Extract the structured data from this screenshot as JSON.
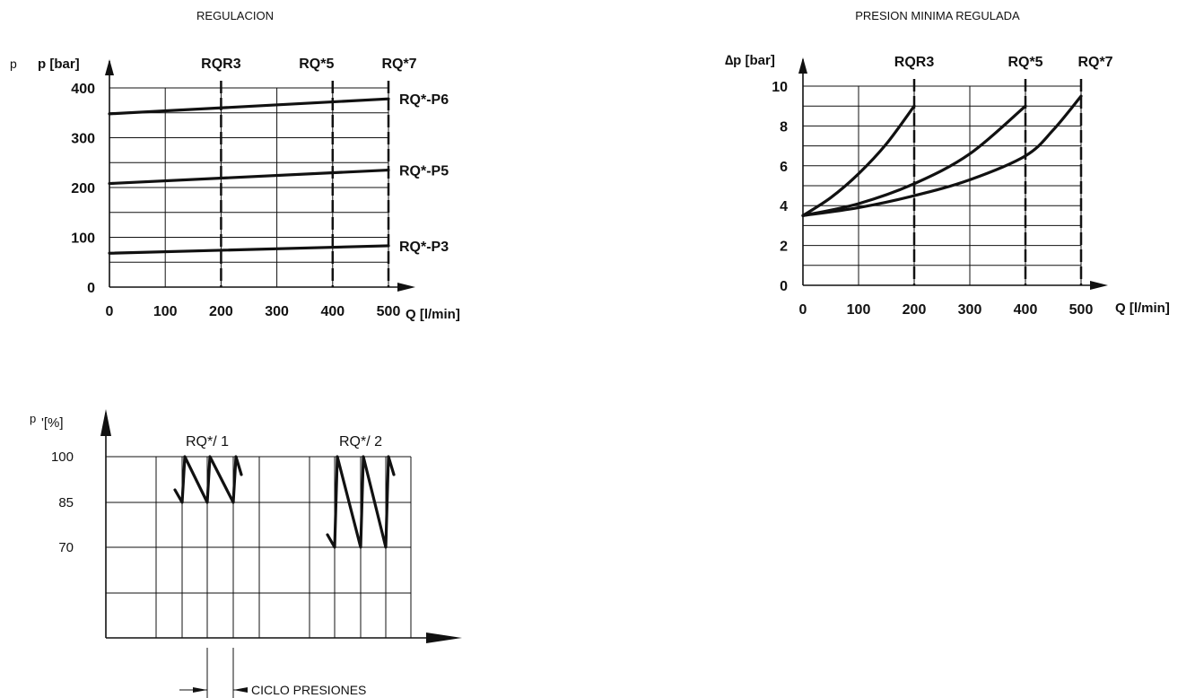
{
  "chart_data": [
    {
      "type": "line",
      "title": "REGULACION",
      "ylabel_prefix": "p",
      "ylabel": "p [bar]",
      "xlabel": "Q [l/min]",
      "xlim": [
        0,
        500
      ],
      "ylim": [
        0,
        400
      ],
      "x_ticks": [
        "0",
        "100",
        "200",
        "300",
        "400",
        "500"
      ],
      "y_ticks": [
        "0",
        "100",
        "200",
        "300",
        "400"
      ],
      "markers": [
        {
          "label": "RQR3",
          "x": 200
        },
        {
          "label": "RQ*5",
          "x": 400
        },
        {
          "label": "RQ*7",
          "x": 500
        }
      ],
      "series": [
        {
          "name": "RQ*-P6",
          "x": [
            0,
            500
          ],
          "y": [
            348,
            378
          ]
        },
        {
          "name": "RQ*-P5",
          "x": [
            0,
            500
          ],
          "y": [
            208,
            235
          ]
        },
        {
          "name": "RQ*-P3",
          "x": [
            0,
            500
          ],
          "y": [
            68,
            83
          ]
        }
      ],
      "grid": true
    },
    {
      "type": "line",
      "title": "PRESION MINIMA REGULADA",
      "ylabel": "∆p [bar]",
      "xlabel": "Q [l/min]",
      "xlim": [
        0,
        500
      ],
      "ylim": [
        0,
        10
      ],
      "x_ticks": [
        "0",
        "100",
        "200",
        "300",
        "400",
        "500"
      ],
      "y_ticks": [
        "0",
        "2",
        "4",
        "6",
        "8",
        "10"
      ],
      "markers": [
        {
          "label": "RQR3",
          "x": 200
        },
        {
          "label": "RQ*5",
          "x": 400
        },
        {
          "label": "RQ*7",
          "x": 500
        }
      ],
      "series": [
        {
          "name": "RQR3",
          "x": [
            0,
            50,
            100,
            150,
            200
          ],
          "y": [
            3.5,
            4.4,
            5.6,
            7.1,
            9.0
          ]
        },
        {
          "name": "RQ*5",
          "x": [
            0,
            100,
            200,
            300,
            400
          ],
          "y": [
            3.5,
            4.1,
            5.1,
            6.6,
            9.0
          ]
        },
        {
          "name": "RQ*7",
          "x": [
            0,
            100,
            200,
            300,
            400,
            450,
            500
          ],
          "y": [
            3.5,
            3.9,
            4.5,
            5.3,
            6.5,
            7.8,
            9.5
          ]
        }
      ],
      "grid": true
    },
    {
      "type": "line",
      "ylabel_prefix": "p",
      "ylabel": "'[%]",
      "y_ticks": [
        "100",
        "85",
        "70"
      ],
      "ylim": [
        40,
        100
      ],
      "groups": [
        {
          "label": "RQ*/ 1",
          "min": 85,
          "max": 100
        },
        {
          "label": "RQ*/ 2",
          "min": 70,
          "max": 100
        }
      ],
      "annotation": "CICLO PRESIONES",
      "grid": true
    }
  ]
}
